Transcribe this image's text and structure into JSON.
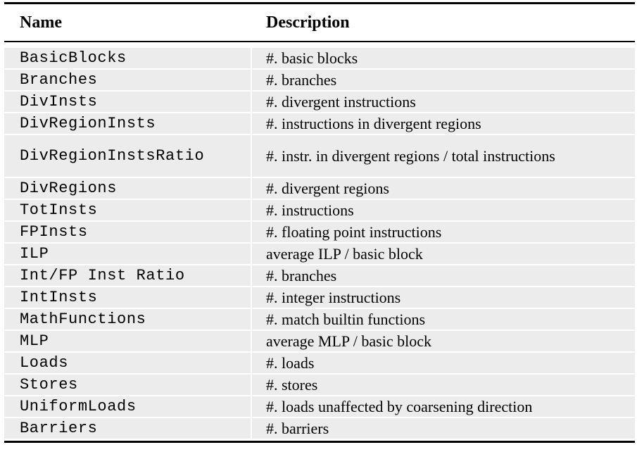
{
  "table": {
    "headers": {
      "name": "Name",
      "description": "Description"
    },
    "rows": [
      {
        "name": "BasicBlocks",
        "description": "#. basic blocks"
      },
      {
        "name": "Branches",
        "description": "#. branches"
      },
      {
        "name": "DivInsts",
        "description": "#. divergent instructions"
      },
      {
        "name": "DivRegionInsts",
        "description": "#. instructions in divergent regions"
      },
      {
        "name": "DivRegionInstsRatio",
        "description": "#. instr. in divergent regions / total instructions"
      },
      {
        "name": "DivRegions",
        "description": "#. divergent regions"
      },
      {
        "name": "TotInsts",
        "description": "#. instructions"
      },
      {
        "name": "FPInsts",
        "description": "#. floating point instructions"
      },
      {
        "name": "ILP",
        "description": "average ILP / basic block"
      },
      {
        "name": "Int/FP Inst Ratio",
        "description": "#. branches"
      },
      {
        "name": "IntInsts",
        "description": "#. integer instructions"
      },
      {
        "name": "MathFunctions",
        "description": "#. match builtin functions"
      },
      {
        "name": "MLP",
        "description": "average MLP / basic block"
      },
      {
        "name": "Loads",
        "description": "#. loads"
      },
      {
        "name": "Stores",
        "description": "#. stores"
      },
      {
        "name": "UniformLoads",
        "description": "#. loads unaffected by coarsening direction"
      },
      {
        "name": "Barriers",
        "description": "#. barriers"
      }
    ]
  }
}
